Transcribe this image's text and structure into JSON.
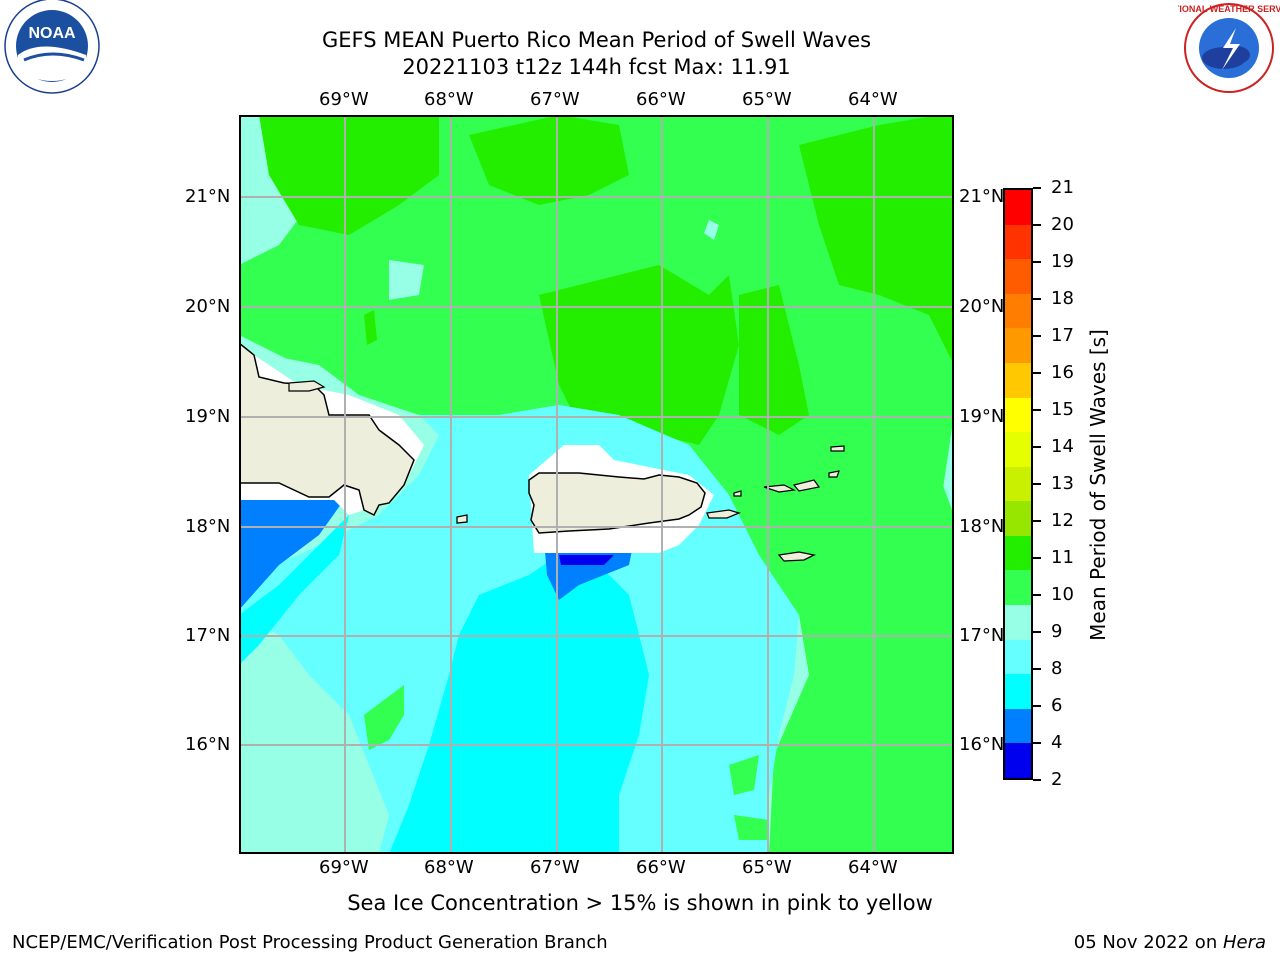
{
  "title": {
    "line1": "GEFS MEAN Puerto Rico Mean Period of Swell Waves",
    "line2": "20221103 t12z 144h fcst   Max: 11.91"
  },
  "logos": {
    "left": {
      "text": "NOAA",
      "ring_text": "NATIONAL OCEANIC AND ATMOSPHERIC ADMINISTRATION · U.S. DEPARTMENT OF COMMERCE"
    },
    "right": {
      "ring_text": "NATIONAL WEATHER SERVICE"
    }
  },
  "map": {
    "lon_labels": [
      "69°W",
      "68°W",
      "67°W",
      "66°W",
      "65°W",
      "64°W"
    ],
    "lat_labels": [
      "21°N",
      "20°N",
      "19°N",
      "18°N",
      "17°N",
      "16°N"
    ],
    "field_colors": {
      "c4_6": "#0080ff",
      "c2_4": "#0000ee",
      "c6_8": "#00ffff",
      "c8_9": "#66ffff",
      "c9_10": "#96ffe6",
      "c10_11": "#32ff50",
      "c11_12": "#24ee00",
      "land": "#eeeedc",
      "grid": "#b0b0b0"
    }
  },
  "colorbar": {
    "label": "Mean Period of Swell Waves [s]",
    "ticks": [
      "21",
      "20",
      "19",
      "18",
      "17",
      "16",
      "15",
      "14",
      "13",
      "12",
      "11",
      "10",
      "9",
      "8",
      "6",
      "4",
      "2"
    ],
    "colors": [
      "#ff0000",
      "#ff3300",
      "#ff5c00",
      "#ff7d00",
      "#ff9900",
      "#ffc800",
      "#ffff00",
      "#e6ff00",
      "#c8f000",
      "#96e600",
      "#24ee00",
      "#32ff50",
      "#96ffe6",
      "#66ffff",
      "#00ffff",
      "#0080ff",
      "#0000ee"
    ]
  },
  "caption": "Sea Ice Concentration > 15% is shown in pink to yellow",
  "footer": {
    "left": "NCEP/EMC/Verification Post Processing Product Generation Branch",
    "right_date": "05 Nov 2022 on ",
    "right_host": "Hera"
  }
}
